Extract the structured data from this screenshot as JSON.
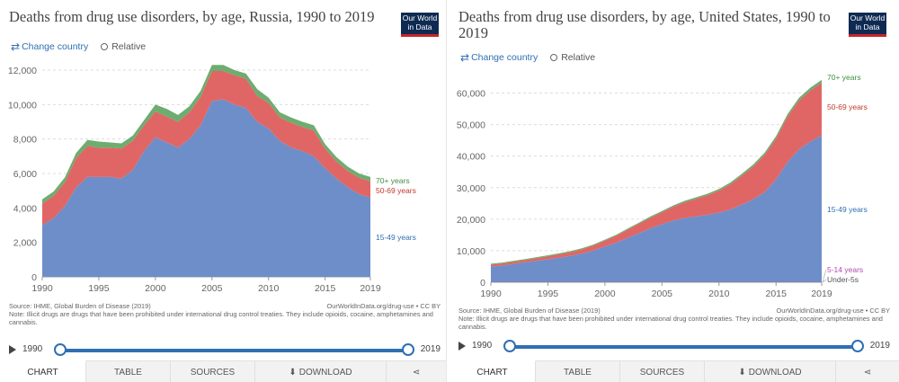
{
  "panels": [
    {
      "title": "Deaths from drug use disorders, by age, Russia, 1990 to 2019",
      "logo": {
        "line1": "Our World",
        "line2": "in Data"
      },
      "controls": {
        "change_country": "Change country",
        "relative": "Relative"
      },
      "source_left": "Source: IHME, Global Burden of Disease (2019)",
      "source_right": "OurWorldInData.org/drug-use • CC BY",
      "note": "Note: Illicit drugs are drugs that have been prohibited under international drug control treaties. They include opioids, cocaine, amphetamines and cannabis.",
      "timeline": {
        "start": "1990",
        "end": "2019"
      },
      "tabs": {
        "chart": "CHART",
        "table": "TABLE",
        "sources": "SOURCES",
        "download": "DOWNLOAD"
      }
    },
    {
      "title": "Deaths from drug use disorders, by age, United States, 1990 to 2019",
      "logo": {
        "line1": "Our World",
        "line2": "in Data"
      },
      "controls": {
        "change_country": "Change country",
        "relative": "Relative"
      },
      "source_left": "Source: IHME, Global Burden of Disease (2019)",
      "source_right": "OurWorldInData.org/drug-use • CC BY",
      "note": "Note: Illicit drugs are drugs that have been prohibited under international drug control treaties. They include opioids, cocaine, amphetamines and cannabis.",
      "timeline": {
        "start": "1990",
        "end": "2019"
      },
      "tabs": {
        "chart": "CHART",
        "table": "TABLE",
        "sources": "SOURCES",
        "download": "DOWNLOAD"
      }
    }
  ],
  "icons": {
    "swap": "swap-arrows-icon",
    "checkbox": "radio-circle-icon",
    "play": "play-icon",
    "download": "download-icon",
    "share": "share-icon"
  },
  "colors": {
    "blue": "#6d8ec9",
    "red": "#e06666",
    "green": "#6dad6f",
    "pink": "#b04ab0",
    "grey": "#8c8c8c",
    "accent": "#2f6fb2"
  },
  "chart_data": [
    {
      "type": "area",
      "stacked": true,
      "x": [
        1990,
        1991,
        1992,
        1993,
        1994,
        1995,
        1996,
        1997,
        1998,
        1999,
        2000,
        2001,
        2002,
        2003,
        2004,
        2005,
        2006,
        2007,
        2008,
        2009,
        2010,
        2011,
        2012,
        2013,
        2014,
        2015,
        2016,
        2017,
        2018,
        2019
      ],
      "series": [
        {
          "name": "15-49 years",
          "color": "#6d8ec9",
          "values": [
            3000,
            3400,
            4100,
            5200,
            5800,
            5800,
            5800,
            5700,
            6200,
            7300,
            8100,
            7800,
            7500,
            8000,
            8800,
            10200,
            10300,
            10000,
            9800,
            9000,
            8600,
            7900,
            7500,
            7300,
            7000,
            6300,
            5700,
            5200,
            4800,
            4600
          ]
        },
        {
          "name": "50-69 years",
          "color": "#e06666",
          "values": [
            1250,
            1300,
            1400,
            1700,
            1800,
            1700,
            1700,
            1750,
            1700,
            1500,
            1500,
            1500,
            1500,
            1550,
            1650,
            1750,
            1650,
            1700,
            1700,
            1500,
            1500,
            1350,
            1450,
            1400,
            1500,
            1150,
            1000,
            950,
            950,
            950
          ]
        },
        {
          "name": "70+ years",
          "color": "#6dad6f",
          "values": [
            250,
            250,
            270,
            300,
            350,
            350,
            300,
            300,
            300,
            300,
            400,
            450,
            400,
            350,
            350,
            350,
            350,
            300,
            300,
            400,
            300,
            300,
            300,
            300,
            300,
            250,
            250,
            250,
            250,
            250
          ]
        }
      ],
      "y_ticks": [
        "0",
        "2,000",
        "4,000",
        "6,000",
        "8,000",
        "10,000",
        "12,000"
      ],
      "x_ticks": [
        "1990",
        "1995",
        "2000",
        "2005",
        "2010",
        "2015",
        "2019"
      ],
      "ylim": [
        0,
        12000
      ],
      "grid": true
    },
    {
      "type": "area",
      "stacked": true,
      "x": [
        1990,
        1991,
        1992,
        1993,
        1994,
        1995,
        1996,
        1997,
        1998,
        1999,
        2000,
        2001,
        2002,
        2003,
        2004,
        2005,
        2006,
        2007,
        2008,
        2009,
        2010,
        2011,
        2012,
        2013,
        2014,
        2015,
        2016,
        2017,
        2018,
        2019
      ],
      "series": [
        {
          "name": "Under-5s",
          "color": "#8c8c8c",
          "values": [
            30,
            30,
            30,
            30,
            30,
            30,
            30,
            30,
            30,
            30,
            30,
            30,
            30,
            30,
            30,
            30,
            30,
            30,
            30,
            30,
            30,
            30,
            30,
            30,
            30,
            30,
            30,
            30,
            30,
            30
          ]
        },
        {
          "name": "5-14 years",
          "color": "#b04ab0",
          "values": [
            60,
            60,
            60,
            60,
            60,
            60,
            60,
            60,
            60,
            60,
            60,
            60,
            60,
            60,
            60,
            60,
            60,
            60,
            60,
            60,
            60,
            60,
            60,
            60,
            60,
            60,
            60,
            60,
            60,
            60
          ]
        },
        {
          "name": "15-49 years",
          "color": "#6d8ec9",
          "values": [
            4900,
            5200,
            5700,
            6200,
            6700,
            7200,
            7700,
            8300,
            9000,
            10000,
            11200,
            12500,
            14000,
            15500,
            17000,
            18300,
            19500,
            20300,
            20800,
            21300,
            22000,
            23000,
            24500,
            26200,
            28500,
            32500,
            38000,
            42000,
            44500,
            46500
          ]
        },
        {
          "name": "50-69 years",
          "color": "#e06666",
          "values": [
            600,
            650,
            700,
            750,
            850,
            950,
            1100,
            1200,
            1400,
            1600,
            1900,
            2200,
            2600,
            3000,
            3400,
            3800,
            4400,
            5000,
            5600,
            6200,
            7000,
            8000,
            9200,
            10400,
            11800,
            13000,
            14400,
            15500,
            16200,
            16700
          ]
        },
        {
          "name": "70+ years",
          "color": "#6dad6f",
          "values": [
            300,
            300,
            300,
            300,
            300,
            300,
            300,
            300,
            300,
            300,
            300,
            300,
            350,
            350,
            400,
            400,
            400,
            450,
            450,
            500,
            500,
            550,
            600,
            650,
            700,
            750,
            800,
            850,
            900,
            900
          ]
        }
      ],
      "y_ticks": [
        "0",
        "10,000",
        "20,000",
        "30,000",
        "40,000",
        "50,000",
        "60,000"
      ],
      "x_ticks": [
        "1990",
        "1995",
        "2000",
        "2005",
        "2010",
        "2015",
        "2019"
      ],
      "ylim": [
        0,
        65000
      ],
      "grid": true
    }
  ]
}
